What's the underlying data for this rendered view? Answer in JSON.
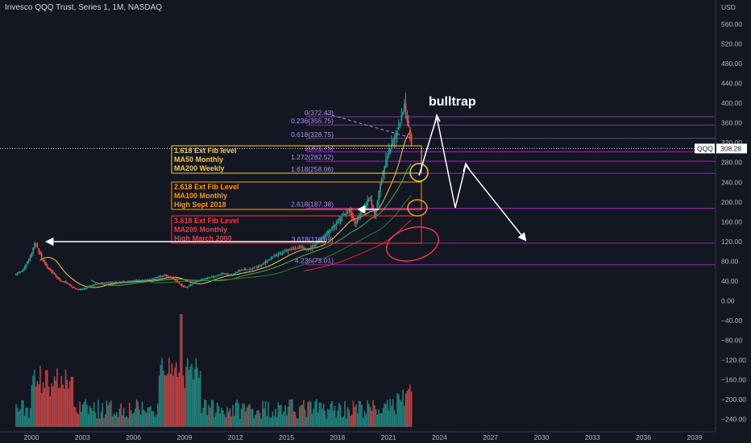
{
  "header": {
    "title": "Invesco QQQ Trust, Series 1, 1M, NASDAQ",
    "currency": "USD"
  },
  "price_tag": {
    "symbol": "QQQ",
    "value": "308.28"
  },
  "annotations": {
    "bulltrap": "bulltrap",
    "boxes": [
      {
        "lines": [
          "1.618 Ext Fib level",
          "MA50 Monthly",
          "MA200 Weekly"
        ],
        "color": "#f7c948"
      },
      {
        "lines": [
          "2.618 Ext Fib Level",
          "MA100 Monthly",
          "High Sept 2018"
        ],
        "color": "#ff9800"
      },
      {
        "lines": [
          "3.618 Ext Fib Level",
          "MA200 Monthly",
          "High March 2000"
        ],
        "color": "#f23645"
      }
    ]
  },
  "chart_data": {
    "type": "candlestick+volume",
    "title": "Invesco QQQ Trust, Series 1, 1M, NASDAQ",
    "ylabel": "USD",
    "ylim": [
      -240,
      580
    ],
    "xlim": [
      1999.0,
      2039.0
    ],
    "x_ticks": [
      "2000",
      "2003",
      "2006",
      "2009",
      "2012",
      "2015",
      "2018",
      "2021",
      "2024",
      "2027",
      "2030",
      "2033",
      "2036",
      "2039"
    ],
    "y_ticks": [
      "560.00",
      "520.00",
      "480.00",
      "440.00",
      "400.00",
      "360.00",
      "320.00",
      "280.00",
      "240.00",
      "200.00",
      "160.00",
      "120.00",
      "80.00",
      "40.00",
      "0.00",
      "−40.00",
      "−80.00",
      "−120.00",
      "−160.00",
      "−200.00",
      "−240.00"
    ],
    "price_points": [
      [
        1999.0,
        52
      ],
      [
        1999.5,
        62
      ],
      [
        2000.0,
        95
      ],
      [
        2000.2,
        118
      ],
      [
        2000.5,
        95
      ],
      [
        2000.9,
        68
      ],
      [
        2001.3,
        55
      ],
      [
        2001.7,
        40
      ],
      [
        2002.0,
        38
      ],
      [
        2002.4,
        28
      ],
      [
        2002.8,
        22
      ],
      [
        2003.2,
        26
      ],
      [
        2003.7,
        33
      ],
      [
        2004.2,
        36
      ],
      [
        2004.8,
        37
      ],
      [
        2005.5,
        39
      ],
      [
        2006.2,
        41
      ],
      [
        2006.8,
        42
      ],
      [
        2007.3,
        47
      ],
      [
        2007.8,
        52
      ],
      [
        2008.3,
        46
      ],
      [
        2008.8,
        32
      ],
      [
        2009.1,
        27
      ],
      [
        2009.6,
        38
      ],
      [
        2010.2,
        45
      ],
      [
        2010.8,
        50
      ],
      [
        2011.3,
        56
      ],
      [
        2011.8,
        52
      ],
      [
        2012.3,
        63
      ],
      [
        2012.9,
        64
      ],
      [
        2013.5,
        72
      ],
      [
        2014.0,
        85
      ],
      [
        2014.6,
        95
      ],
      [
        2015.2,
        105
      ],
      [
        2015.8,
        108
      ],
      [
        2016.3,
        104
      ],
      [
        2016.8,
        118
      ],
      [
        2017.3,
        135
      ],
      [
        2017.9,
        155
      ],
      [
        2018.2,
        168
      ],
      [
        2018.7,
        185
      ],
      [
        2019.0,
        155
      ],
      [
        2019.5,
        185
      ],
      [
        2019.9,
        210
      ],
      [
        2020.2,
        170
      ],
      [
        2020.5,
        235
      ],
      [
        2020.9,
        290
      ],
      [
        2021.3,
        325
      ],
      [
        2021.7,
        365
      ],
      [
        2021.95,
        400
      ],
      [
        2022.1,
        365
      ],
      [
        2022.3,
        330
      ],
      [
        2022.4,
        308.28
      ]
    ],
    "fib_levels": [
      {
        "label": "0(372.43)",
        "value": 372.43
      },
      {
        "label": "0.236(355.75)",
        "value": 355.75
      },
      {
        "label": "0.618(328.75)",
        "value": 328.75
      },
      {
        "label": "1(301.75)",
        "value": 301.75
      },
      {
        "label": "1.272(282.52)",
        "value": 282.52
      },
      {
        "label": "1.618(258.06)",
        "value": 258.06
      },
      {
        "label": "2.618(187.38)",
        "value": 187.38
      },
      {
        "label": "3.618(116.69)",
        "value": 116.69
      },
      {
        "label": "4.236(73.01)",
        "value": 73.01
      }
    ],
    "current_price": 308.28,
    "grid": false
  }
}
